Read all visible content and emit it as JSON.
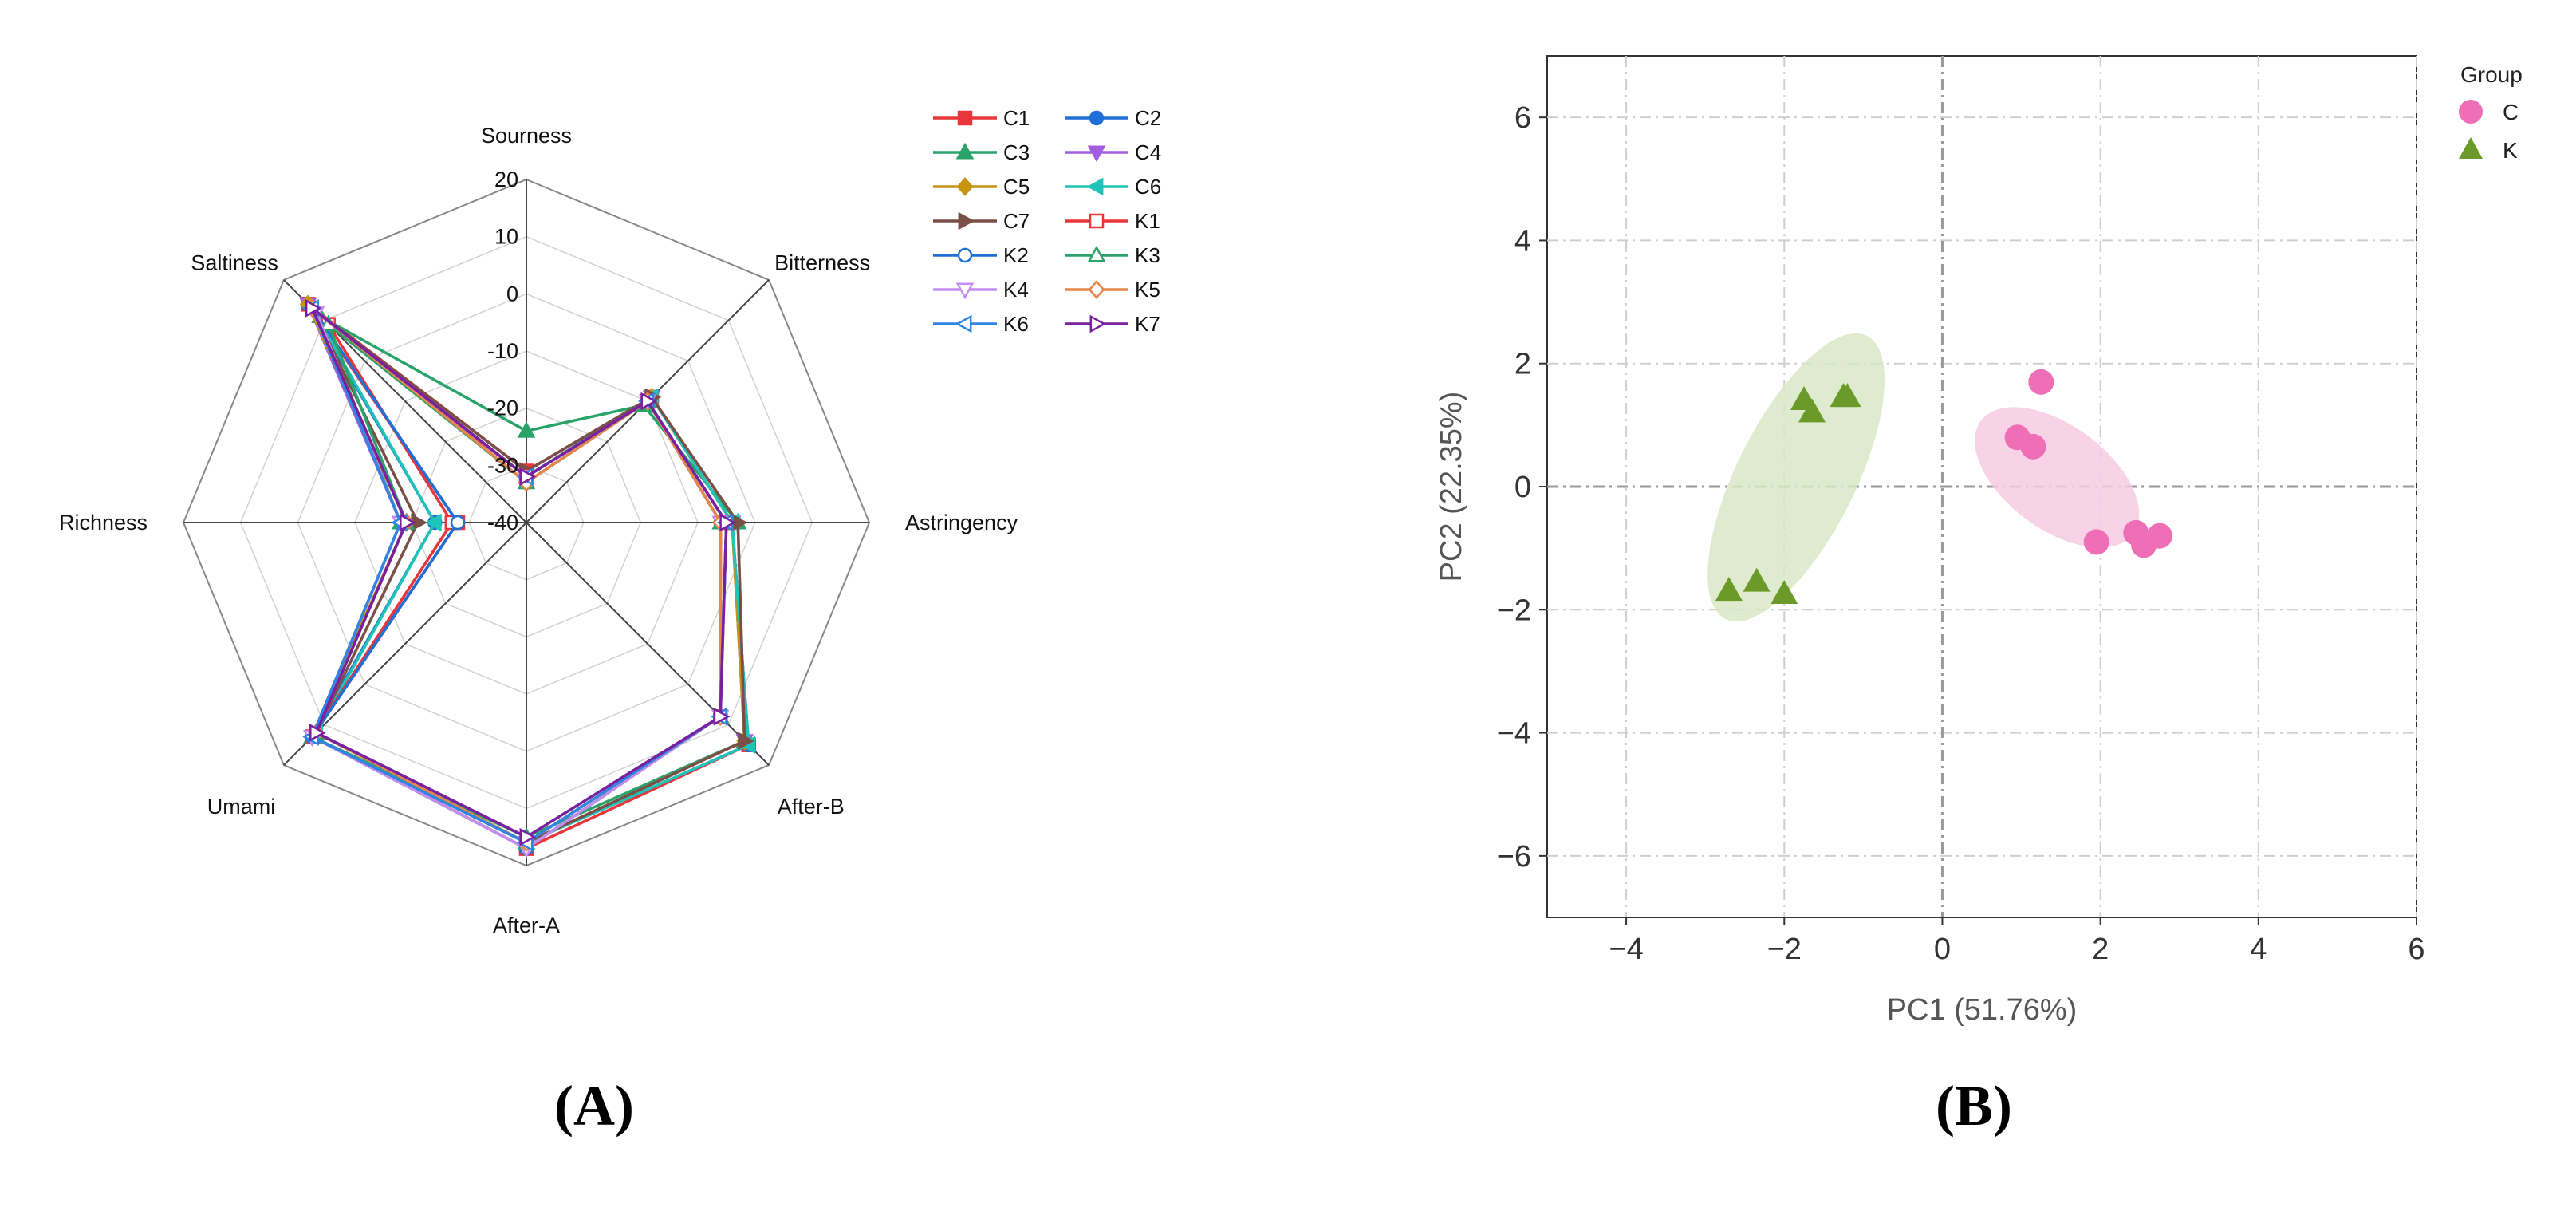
{
  "chart_data": [
    {
      "type": "radar",
      "panel_label": "(A)",
      "axes": [
        "Sourness",
        "Bitterness",
        "Astringency",
        "After-B",
        "After-A",
        "Umami",
        "Richness",
        "Saltiness"
      ],
      "radial_ticks": [
        "20",
        "10",
        "0",
        "-10",
        "-20",
        "-30",
        "-40"
      ],
      "rlim": [
        -40,
        20
      ],
      "series": [
        {
          "name": "C1",
          "color": "#e8363a",
          "marker": "square",
          "filled": true,
          "values": [
            -31,
            -9,
            -4,
            15,
            17,
            13,
            -28,
            14
          ]
        },
        {
          "name": "C2",
          "color": "#1f6fd6",
          "marker": "circle",
          "filled": true,
          "values": [
            -32,
            -9,
            -4,
            15,
            16,
            13,
            -24,
            14
          ]
        },
        {
          "name": "C3",
          "color": "#2aa36b",
          "marker": "triangle-up",
          "filled": true,
          "values": [
            -24,
            -11,
            -3,
            14,
            15,
            13,
            -18,
            11
          ]
        },
        {
          "name": "C4",
          "color": "#a15ee0",
          "marker": "triangle-down",
          "filled": true,
          "values": [
            -32,
            -9,
            -4,
            14,
            16,
            13,
            -18,
            14
          ]
        },
        {
          "name": "C5",
          "color": "#c79410",
          "marker": "diamond",
          "filled": true,
          "values": [
            -32,
            -9,
            -4,
            14,
            16,
            13,
            -19,
            14
          ]
        },
        {
          "name": "C6",
          "color": "#1fc3b8",
          "marker": "triangle-left",
          "filled": true,
          "values": [
            -32,
            -9,
            -4,
            15,
            16,
            12,
            -24,
            13
          ]
        },
        {
          "name": "C7",
          "color": "#7a4f47",
          "marker": "triangle-right",
          "filled": true,
          "values": [
            -31,
            -9,
            -3,
            14,
            16,
            12,
            -21,
            13
          ]
        },
        {
          "name": "K1",
          "color": "#e8363a",
          "marker": "square",
          "filled": false,
          "values": [
            -32,
            -10,
            -5,
            8,
            17,
            13,
            -27,
            9
          ]
        },
        {
          "name": "K2",
          "color": "#1f6fd6",
          "marker": "circle",
          "filled": false,
          "values": [
            -33,
            -10,
            -6,
            8,
            17,
            13,
            -28,
            13
          ]
        },
        {
          "name": "K3",
          "color": "#2aa36b",
          "marker": "triangle-up",
          "filled": false,
          "values": [
            -33,
            -10,
            -6,
            8,
            16,
            12,
            -19,
            9
          ]
        },
        {
          "name": "K4",
          "color": "#c48df0",
          "marker": "triangle-down",
          "filled": false,
          "values": [
            -32,
            -10,
            -6,
            8,
            17,
            13,
            -18,
            12
          ]
        },
        {
          "name": "K5",
          "color": "#e8864a",
          "marker": "diamond",
          "filled": false,
          "values": [
            -33,
            -10,
            -6,
            8,
            16,
            12,
            -19,
            13
          ]
        },
        {
          "name": "K6",
          "color": "#2f86e0",
          "marker": "triangle-left",
          "filled": false,
          "values": [
            -32,
            -10,
            -5,
            8,
            16,
            13,
            -18,
            13
          ]
        },
        {
          "name": "K7",
          "color": "#7a1fa0",
          "marker": "triangle-right",
          "filled": false,
          "values": [
            -32,
            -10,
            -5,
            8,
            15,
            12,
            -19,
            13
          ]
        }
      ]
    },
    {
      "type": "scatter",
      "panel_label": "(B)",
      "xlabel": "PC1 (51.76%)",
      "ylabel": "PC2 (22.35%)",
      "xlim": [
        -5,
        6
      ],
      "ylim": [
        -7,
        7
      ],
      "xticks": [
        -4,
        -2,
        0,
        2,
        4,
        6
      ],
      "yticks": [
        -6,
        -4,
        -2,
        0,
        2,
        4,
        6
      ],
      "legend_title": "Group",
      "series": [
        {
          "name": "C",
          "color": "#ee6fb5",
          "ellipse_color": "#f7cbe4",
          "marker": "circle",
          "points": [
            [
              1.25,
              1.7
            ],
            [
              0.95,
              0.8
            ],
            [
              1.15,
              0.65
            ],
            [
              1.95,
              -0.9
            ],
            [
              2.45,
              -0.75
            ],
            [
              2.55,
              -0.95
            ],
            [
              2.75,
              -0.8
            ]
          ],
          "ellipse": {
            "cx": 1.45,
            "cy": 0.15,
            "rx": 2.7,
            "ry": 0.75,
            "angle_deg": -50
          }
        },
        {
          "name": "K",
          "color": "#6b9a2a",
          "ellipse_color": "#d8e7c6",
          "marker": "triangle",
          "points": [
            [
              -1.75,
              1.4
            ],
            [
              -1.65,
              1.2
            ],
            [
              -1.25,
              1.45
            ],
            [
              -1.2,
              1.45
            ],
            [
              -2.7,
              -1.7
            ],
            [
              -2.35,
              -1.55
            ],
            [
              -2.0,
              -1.75
            ]
          ],
          "ellipse": {
            "cx": -1.85,
            "cy": 0.15,
            "rx": 4.95,
            "ry": 0.78,
            "angle_deg": 70
          }
        }
      ]
    }
  ]
}
